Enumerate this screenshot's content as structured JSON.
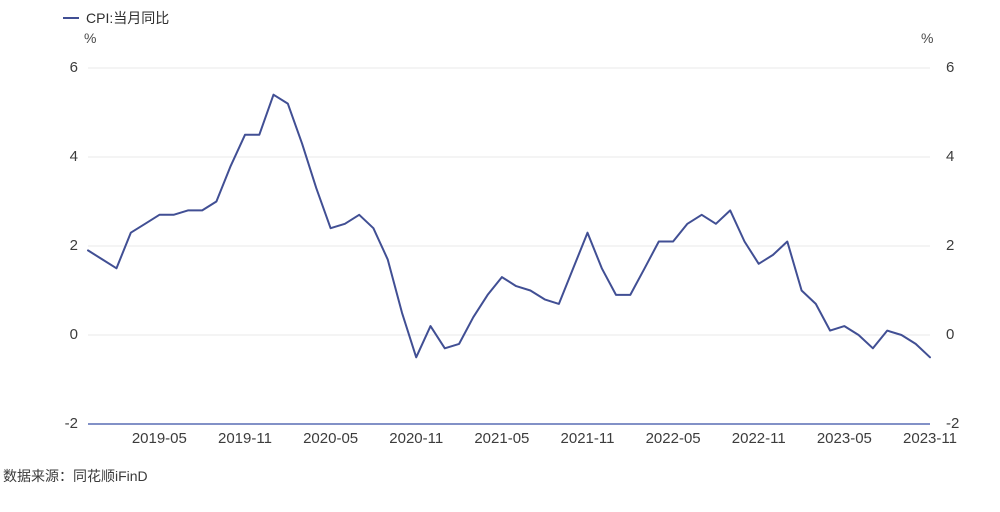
{
  "legend": {
    "label": "CPI:当月同比"
  },
  "axes": {
    "left_unit": "%",
    "right_unit": "%"
  },
  "source": "数据来源：同花顺iFinD",
  "colors": {
    "line": "#414f94",
    "axis_line": "#8291c7",
    "gridline": "#eaeaea",
    "text": "#3c3c3c"
  },
  "chart_data": {
    "type": "line",
    "title": "",
    "xlabel": "",
    "ylabel": "%",
    "ylim": [
      -2,
      6
    ],
    "yticks": [
      6,
      4,
      2,
      0,
      -2
    ],
    "grid": true,
    "legend_position": "top-left",
    "xtick_labels": [
      "2019-05",
      "2019-11",
      "2020-05",
      "2020-11",
      "2021-05",
      "2021-11",
      "2022-05",
      "2022-11",
      "2023-05",
      "2023-11"
    ],
    "series": [
      {
        "name": "CPI:当月同比",
        "x": [
          "2018-12",
          "2019-01",
          "2019-02",
          "2019-03",
          "2019-04",
          "2019-05",
          "2019-06",
          "2019-07",
          "2019-08",
          "2019-09",
          "2019-10",
          "2019-11",
          "2019-12",
          "2020-01",
          "2020-02",
          "2020-03",
          "2020-04",
          "2020-05",
          "2020-06",
          "2020-07",
          "2020-08",
          "2020-09",
          "2020-10",
          "2020-11",
          "2020-12",
          "2021-01",
          "2021-02",
          "2021-03",
          "2021-04",
          "2021-05",
          "2021-06",
          "2021-07",
          "2021-08",
          "2021-09",
          "2021-10",
          "2021-11",
          "2021-12",
          "2022-01",
          "2022-02",
          "2022-03",
          "2022-04",
          "2022-05",
          "2022-06",
          "2022-07",
          "2022-08",
          "2022-09",
          "2022-10",
          "2022-11",
          "2022-12",
          "2023-01",
          "2023-02",
          "2023-03",
          "2023-04",
          "2023-05",
          "2023-06",
          "2023-07",
          "2023-08",
          "2023-09",
          "2023-10",
          "2023-11"
        ],
        "values": [
          1.9,
          1.7,
          1.5,
          2.3,
          2.5,
          2.7,
          2.7,
          2.8,
          2.8,
          3.0,
          3.8,
          4.5,
          4.5,
          5.4,
          5.2,
          4.3,
          3.3,
          2.4,
          2.5,
          2.7,
          2.4,
          1.7,
          0.5,
          -0.5,
          0.2,
          -0.3,
          -0.2,
          0.4,
          0.9,
          1.3,
          1.1,
          1.0,
          0.8,
          0.7,
          1.5,
          2.3,
          1.5,
          0.9,
          0.9,
          1.5,
          2.1,
          2.1,
          2.5,
          2.7,
          2.5,
          2.8,
          2.1,
          1.6,
          1.8,
          2.1,
          1.0,
          0.7,
          0.1,
          0.2,
          0.0,
          -0.3,
          0.1,
          0.0,
          -0.2,
          -0.5
        ]
      }
    ]
  }
}
